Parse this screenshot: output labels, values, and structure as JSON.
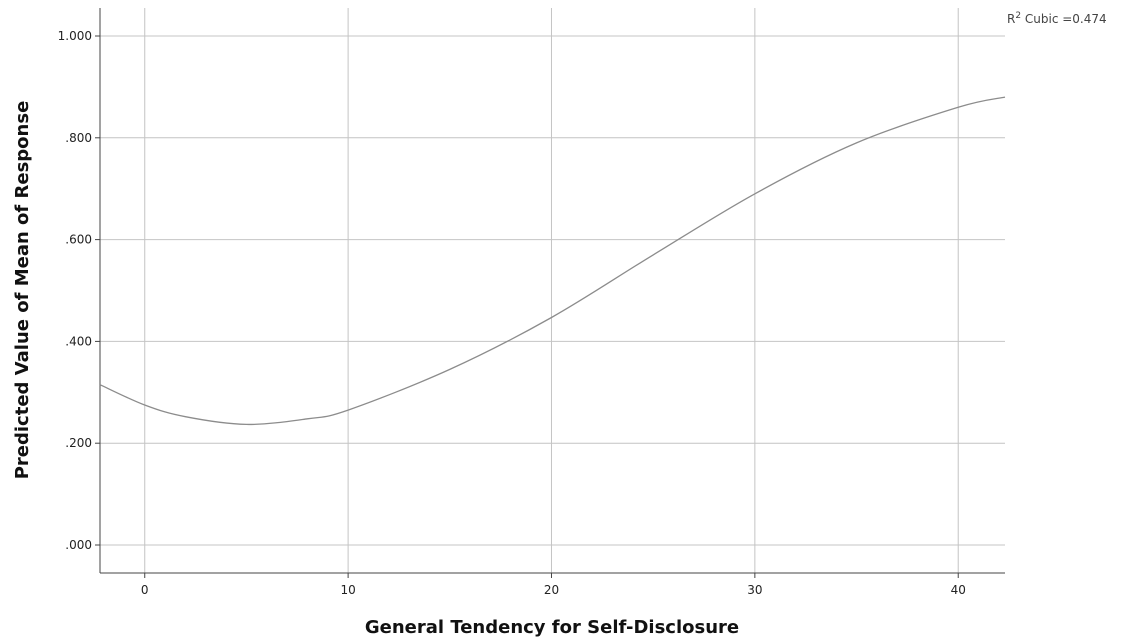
{
  "chart_data": {
    "type": "line",
    "title": "",
    "xlabel": "General Tendency for Self-Disclosure",
    "ylabel": "Predicted Value of Mean of Response",
    "annotation": {
      "prefix": "R",
      "sup": "2",
      "text": " Cubic =0.474"
    },
    "xlim": [
      -2.2,
      42.3
    ],
    "ylim": [
      -0.055,
      1.055
    ],
    "xticks": [
      0,
      10,
      20,
      30,
      40
    ],
    "xtick_labels": [
      "0",
      "10",
      "20",
      "30",
      "40"
    ],
    "yticks": [
      0,
      0.2,
      0.4,
      0.6,
      0.8,
      1.0
    ],
    "ytick_labels": [
      ".000",
      ".200",
      ".400",
      ".600",
      ".800",
      "1.000"
    ],
    "grid": true,
    "series": [
      {
        "color": "#8c8c8c",
        "x": [
          -2.2,
          0,
          2,
          5,
          8,
          10,
          15,
          20,
          25,
          30,
          35,
          40,
          42.3
        ],
        "y": [
          0.315,
          0.275,
          0.252,
          0.237,
          0.248,
          0.265,
          0.345,
          0.447,
          0.57,
          0.69,
          0.79,
          0.86,
          0.88
        ]
      }
    ]
  }
}
